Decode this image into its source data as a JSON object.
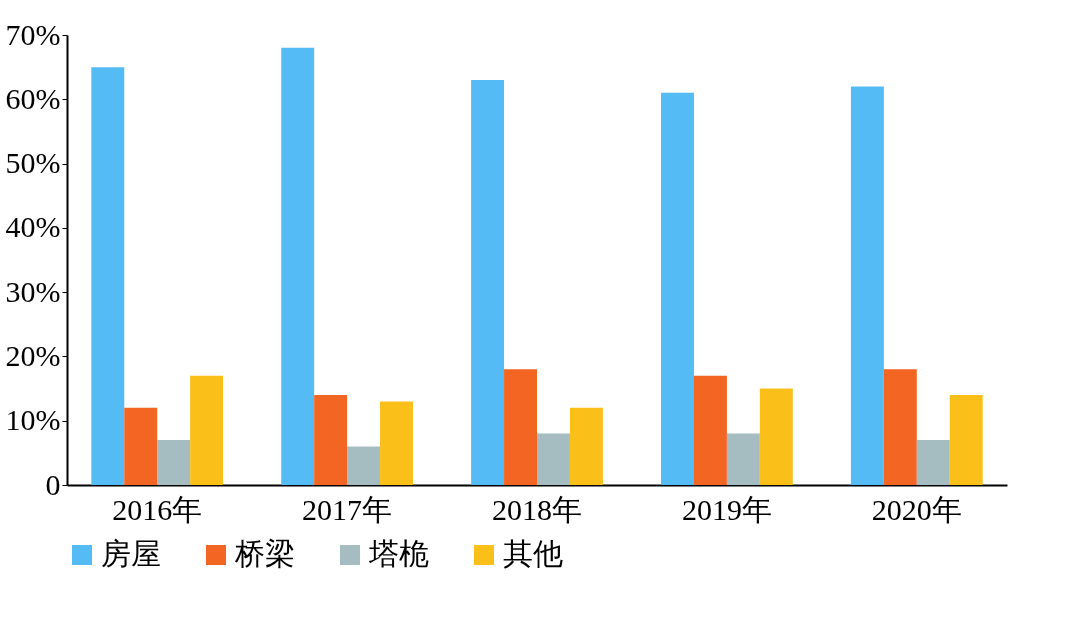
{
  "chart_data": {
    "type": "bar",
    "categories": [
      "2016年",
      "2017年",
      "2018年",
      "2019年",
      "2020年"
    ],
    "series": [
      {
        "name": "房屋",
        "color": "#55bbf5",
        "values": [
          65,
          68,
          63,
          61,
          62
        ]
      },
      {
        "name": "桥梁",
        "color": "#f26522",
        "values": [
          12,
          14,
          18,
          17,
          18
        ]
      },
      {
        "name": "塔桅",
        "color": "#a5bcc0",
        "values": [
          7,
          6,
          8,
          8,
          7
        ]
      },
      {
        "name": "其他",
        "color": "#fbbf1a",
        "values": [
          17,
          13,
          12,
          15,
          14
        ]
      }
    ],
    "ylim": [
      0,
      70
    ],
    "yticks": [
      0,
      {
        "value": 10,
        "label": "10%"
      },
      {
        "value": 20,
        "label": "20%"
      },
      {
        "value": 30,
        "label": "30%"
      },
      {
        "value": 40,
        "label": "40%"
      },
      {
        "value": 50,
        "label": "50%"
      },
      {
        "value": 60,
        "label": "60%"
      },
      {
        "value": 70,
        "label": "70%"
      }
    ],
    "grid": false,
    "legend": "bottom"
  }
}
